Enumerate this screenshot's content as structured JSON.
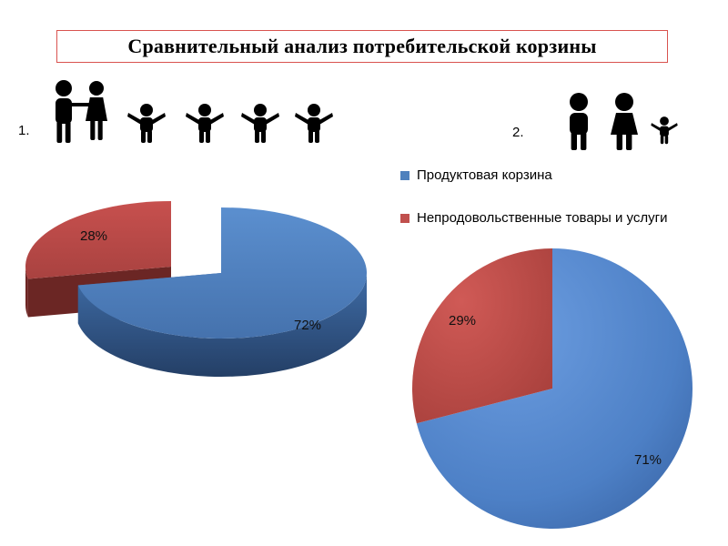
{
  "title": "Сравнительный анализ потребительской корзины",
  "markers": [
    "1.",
    "2."
  ],
  "family_icons": [
    {
      "label": "family-1",
      "adults": 2,
      "children": 4
    },
    {
      "label": "family-2",
      "adults": 2,
      "children": 1
    }
  ],
  "chart_data": [
    {
      "type": "pie",
      "style": "3d-exploded",
      "categories": [
        "Продуктовая корзина",
        "Непродовольственные товары и услуги"
      ],
      "values": [
        72,
        28
      ],
      "labels": [
        "72%",
        "28%"
      ],
      "colors": [
        "#4f81bd",
        "#c0504d"
      ]
    },
    {
      "type": "pie",
      "categories": [
        "Продуктовая корзина",
        "Непродовольственные товары и услуги"
      ],
      "values": [
        71,
        29
      ],
      "labels": [
        "71%",
        "29%"
      ],
      "colors": [
        "#4f81bd",
        "#c0504d"
      ],
      "legend": {
        "position": "top",
        "entries": [
          "Продуктовая корзина",
          "Непродовольственные товары и услуги"
        ]
      }
    }
  ]
}
